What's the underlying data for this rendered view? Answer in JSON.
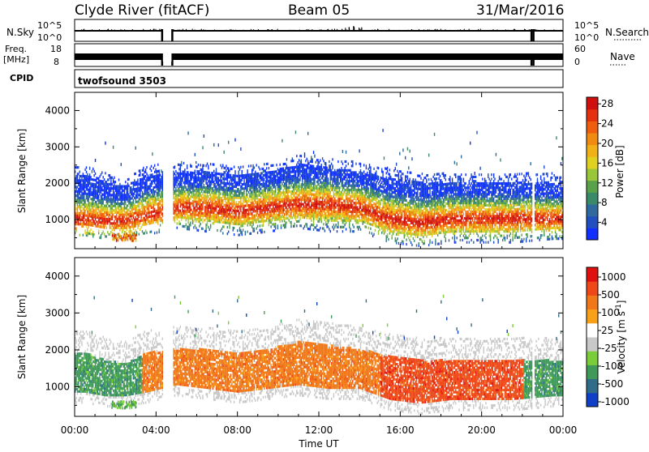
{
  "header": {
    "station": "Clyde River (fitACF)",
    "beam": "Beam 05",
    "date": "31/Mar/2016"
  },
  "status_panels": {
    "nsky_label": "N.Sky",
    "nsearch_label": "N.Search",
    "freq_label_line1": "Freq.",
    "freq_label_line2": "[MHz]",
    "nave_label": "Nave",
    "cpid_label": "CPID",
    "cpid_value": "twofsound 3503",
    "noise_ticks": [
      "10^5",
      "10^0"
    ],
    "freq_ticks": [
      "18",
      "8"
    ],
    "nave_ticks": [
      "60",
      "0"
    ],
    "data_gaps_utc_hours": [
      [
        4.3,
        4.8
      ],
      [
        22.45,
        22.55
      ]
    ]
  },
  "chart_data": [
    {
      "type": "heatmap",
      "panel": "power",
      "ylabel": "Slant Range [km]",
      "xlabel": "",
      "yticks": [
        1000,
        2000,
        3000,
        4000
      ],
      "ylim": [
        200,
        4500
      ],
      "xlim": [
        0,
        24
      ],
      "colorbar": {
        "label": "Power [dB]",
        "ticks": [
          "4",
          "8",
          "12",
          "16",
          "20",
          "24",
          "28"
        ],
        "colors": [
          "#1030ff",
          "#2050c0",
          "#2f6a9e",
          "#3a8a6a",
          "#5aa24a",
          "#9ac63a",
          "#e0d020",
          "#f0b018",
          "#f08a10",
          "#ee5e0e",
          "#e4300e",
          "#d0100e"
        ]
      },
      "echo_band": [
        {
          "t": 0.5,
          "lo": 800,
          "hi": 2200,
          "peak": 1000
        },
        {
          "t": 1.5,
          "lo": 700,
          "hi": 2000,
          "peak": 950
        },
        {
          "t": 2.5,
          "lo": 700,
          "hi": 1900,
          "peak": 950
        },
        {
          "t": 3.5,
          "lo": 800,
          "hi": 2200,
          "peak": 1100
        },
        {
          "t": 5.0,
          "lo": 1000,
          "hi": 2300,
          "peak": 1300
        },
        {
          "t": 6.5,
          "lo": 900,
          "hi": 2300,
          "peak": 1300
        },
        {
          "t": 8.0,
          "lo": 800,
          "hi": 2200,
          "peak": 1200
        },
        {
          "t": 9.5,
          "lo": 900,
          "hi": 2300,
          "peak": 1300
        },
        {
          "t": 11.0,
          "lo": 1000,
          "hi": 2500,
          "peak": 1400
        },
        {
          "t": 12.5,
          "lo": 900,
          "hi": 2400,
          "peak": 1400
        },
        {
          "t": 14.0,
          "lo": 900,
          "hi": 2300,
          "peak": 1300
        },
        {
          "t": 15.5,
          "lo": 600,
          "hi": 2100,
          "peak": 1000
        },
        {
          "t": 17.0,
          "lo": 500,
          "hi": 2000,
          "peak": 900
        },
        {
          "t": 18.5,
          "lo": 600,
          "hi": 2000,
          "peak": 1000
        },
        {
          "t": 20.0,
          "lo": 600,
          "hi": 2000,
          "peak": 1000
        },
        {
          "t": 21.5,
          "lo": 600,
          "hi": 2000,
          "peak": 1000
        },
        {
          "t": 23.5,
          "lo": 700,
          "hi": 2000,
          "peak": 1000
        }
      ]
    },
    {
      "type": "heatmap",
      "panel": "velocity",
      "ylabel": "Slant Range [km]",
      "xlabel": "Time UT",
      "xticks": [
        "00:00",
        "04:00",
        "08:00",
        "12:00",
        "16:00",
        "20:00",
        "00:00"
      ],
      "yticks": [
        1000,
        2000,
        3000,
        4000
      ],
      "ylim": [
        200,
        4500
      ],
      "xlim": [
        0,
        24
      ],
      "colorbar": {
        "label": "Velocity [m s",
        "label_exponent": "-1",
        "label_close": "]",
        "ticks": [
          "1000",
          "500",
          "100",
          "25",
          "-25",
          "-100",
          "-500",
          "-1000"
        ],
        "colors": [
          "#1040c8",
          "#2e6c8a",
          "#3f9a5a",
          "#7acc3a",
          "#c8c8c8",
          "#ffffff",
          "#f8a018",
          "#f07818",
          "#ee4818",
          "#e01010"
        ]
      },
      "velocity_regimes": [
        {
          "t_start": 0.0,
          "t_end": 3.3,
          "dominant": "100"
        },
        {
          "t_start": 3.3,
          "t_end": 15.0,
          "dominant": "-100"
        },
        {
          "t_start": 15.0,
          "t_end": 22.0,
          "dominant": "-500"
        },
        {
          "t_start": 22.0,
          "t_end": 24.0,
          "dominant": "100"
        }
      ]
    }
  ]
}
